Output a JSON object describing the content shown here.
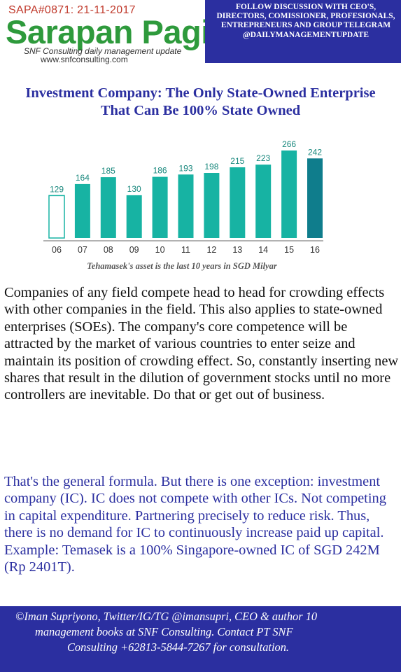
{
  "header": {
    "code": "SAPA#0871: 21-11-2017",
    "brand": "Sarapan Pagi",
    "tagline": "SNF Consulting daily management update",
    "url": "www.snfconsulting.com",
    "follow": "FOLLOW DISCUSSION WITH CEO'S, DIRECTORS, COMISSIONER, PROFESIONALS, ENTREPRENEURS AND GROUP TELEGRAM @DAILYMANAGEMENTUPDATE"
  },
  "article": {
    "title": "Investment Company: The Only State-Owned Enterprise That Can Be 100% State Owned",
    "caption": "Tehamasek's asset is the last 10 years in SGD Milyar",
    "paragraph1": "Companies of any field compete head to head for crowding effects with other companies in the field. This also applies to state-owned enterprises (SOEs). The company's core competence will be attracted by the market of various countries to enter seize and maintain its position of crowding effect. So, constantly inserting new shares that result in the dilution of government stocks until no more controllers are inevitable. Do that or get out of business.",
    "paragraph2": "That's the general formula. But there is one exception: investment company (IC). IC does not compete with other ICs. Not competing in capital expenditure. Partnering precisely to reduce risk. Thus, there is no demand for IC to continuously increase paid up capital. Example: Temasek is a 100% Singapore-owned IC of SGD 242M (Rp 2401T)."
  },
  "footer": {
    "line1": "©Iman Supriyono, Twitter/IG/TG @imansupri, CEO & author 10",
    "line2": "management books at SNF Consulting. Contact PT SNF",
    "line3": "Consulting +62813-5844-7267 for consultation."
  },
  "colors": {
    "brand_green": "#2e9a3c",
    "brand_red": "#c0392b",
    "accent_blue": "#2b2fa0",
    "bar_teal": "#17b3a3",
    "bar_dark": "#0f7d8c"
  },
  "chart_data": {
    "type": "bar",
    "categories": [
      "06",
      "07",
      "08",
      "09",
      "10",
      "11",
      "12",
      "13",
      "14",
      "15",
      "16"
    ],
    "values": [
      129,
      164,
      185,
      130,
      186,
      193,
      198,
      215,
      223,
      266,
      242
    ],
    "ylim": [
      0,
      266
    ],
    "grid": false,
    "bar_styles": [
      "outline",
      "teal",
      "teal",
      "teal",
      "teal",
      "teal",
      "teal",
      "teal",
      "teal",
      "teal",
      "dark"
    ]
  }
}
